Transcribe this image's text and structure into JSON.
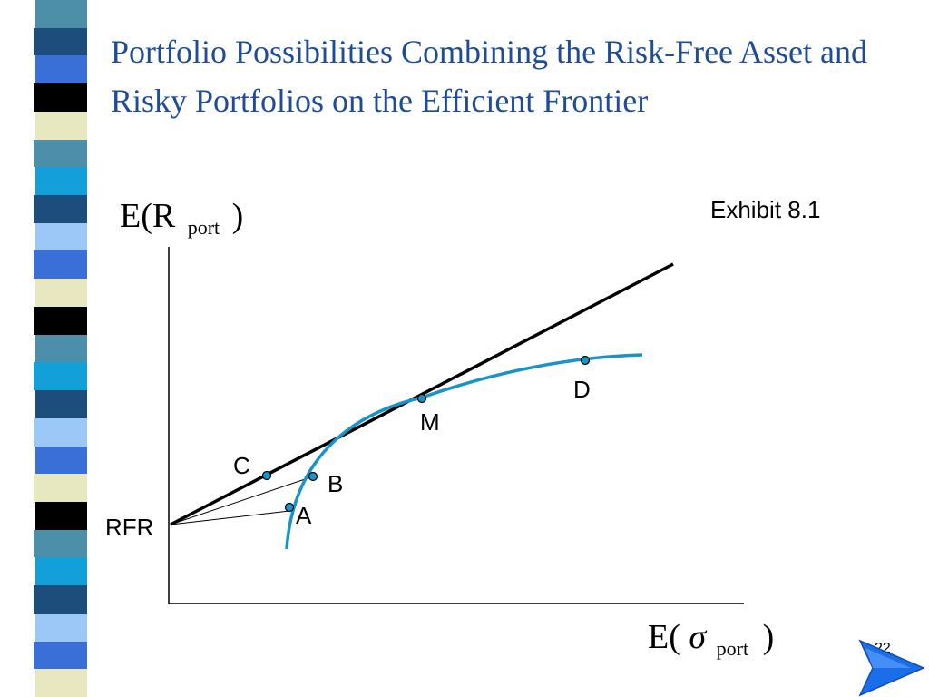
{
  "slide": {
    "title": "Portfolio Possibilities Combining the Risk-Free Asset and Risky Portfolios on the Efficient Frontier",
    "exhibit": "Exhibit 8.1",
    "page_number": "22"
  },
  "diagram": {
    "y_axis_label": {
      "main": "E(R",
      "subscript": "port",
      "close": ")"
    },
    "x_axis_label": {
      "main": "E(",
      "symbol": "σ",
      "subscript": "port",
      "close": ")"
    },
    "rfr_label": "RFR",
    "points": [
      {
        "label": "A"
      },
      {
        "label": "B"
      },
      {
        "label": "C"
      },
      {
        "label": "M"
      },
      {
        "label": "D"
      }
    ],
    "colors": {
      "frontier": "#1a93c6",
      "point_fill": "#1a93c6",
      "line": "#000000"
    }
  },
  "decor": {
    "stripe_colors": [
      "#4d8fa8",
      "#1d4d7a",
      "#3a6fd8",
      "#000000",
      "#e8e8c0",
      "#4d8fa8",
      "#13a0d8",
      "#1d4d7a",
      "#9cc8f8",
      "#3a6fd8",
      "#e8e8c0",
      "#000000",
      "#4d8fa8",
      "#13a0d8",
      "#1d4d7a",
      "#9cc8f8",
      "#3a6fd8",
      "#e8e8c0",
      "#000000",
      "#4d8fa8",
      "#13a0d8",
      "#1d4d7a",
      "#9cc8f8",
      "#3a6fd8",
      "#e8e8c0"
    ],
    "arrow_color": "#1a6fe8"
  }
}
